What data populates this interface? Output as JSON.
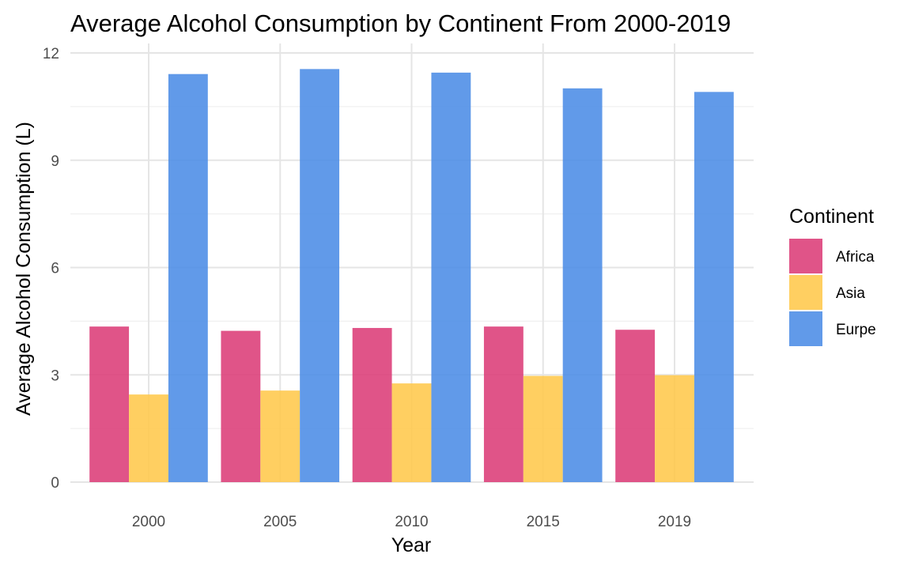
{
  "chart_data": {
    "type": "bar",
    "title": "Average Alcohol Consumption by Continent From 2000-2019",
    "xlabel": "Year",
    "ylabel": "Average Alcohol Consumption (L)",
    "categories": [
      "2000",
      "2005",
      "2010",
      "2015",
      "2019"
    ],
    "series": [
      {
        "name": "Africa",
        "color": "#dc3c78",
        "values": [
          4.35,
          4.23,
          4.31,
          4.35,
          4.26
        ]
      },
      {
        "name": "Asia",
        "color": "#ffc84b",
        "values": [
          2.45,
          2.56,
          2.76,
          2.97,
          2.99
        ]
      },
      {
        "name": "Eurpe",
        "color": "#4b8ce6",
        "values": [
          11.41,
          11.55,
          11.45,
          11.01,
          10.91
        ]
      }
    ],
    "ylim": [
      0,
      12
    ],
    "yticks": [
      0,
      3,
      6,
      9,
      12
    ],
    "grid": true,
    "legend": {
      "title": "Continent",
      "position": "right"
    }
  }
}
